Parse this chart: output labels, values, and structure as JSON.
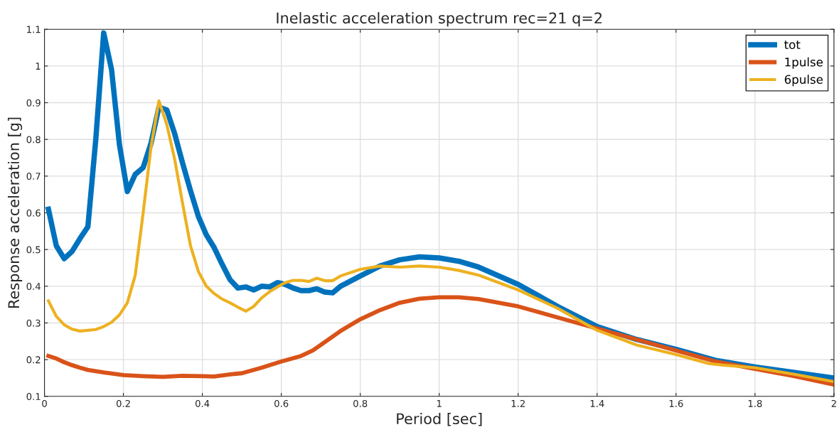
{
  "chart_data": {
    "type": "line",
    "title": "Inelastic acceleration spectrum rec=21 q=2",
    "xlabel": "Period [sec]",
    "ylabel": "Response acceleration [g]",
    "xlim": [
      0,
      2
    ],
    "ylim": [
      0.1,
      1.1
    ],
    "xticks": [
      0,
      0.2,
      0.4,
      0.6,
      0.8,
      1,
      1.2,
      1.4,
      1.6,
      1.8,
      2
    ],
    "yticks": [
      0.1,
      0.2,
      0.3,
      0.4,
      0.5,
      0.6,
      0.7,
      0.8,
      0.9,
      1,
      1.1
    ],
    "grid": true,
    "legend": "top right",
    "line_style": "solid",
    "marker": "none",
    "series": [
      {
        "name": "tot",
        "color": "#0072bd",
        "x": [
          0.01,
          0.03,
          0.05,
          0.07,
          0.09,
          0.11,
          0.13,
          0.15,
          0.17,
          0.19,
          0.21,
          0.23,
          0.25,
          0.27,
          0.29,
          0.31,
          0.33,
          0.35,
          0.37,
          0.39,
          0.41,
          0.43,
          0.45,
          0.47,
          0.49,
          0.51,
          0.53,
          0.55,
          0.57,
          0.59,
          0.61,
          0.63,
          0.65,
          0.67,
          0.69,
          0.71,
          0.73,
          0.75,
          0.8,
          0.85,
          0.9,
          0.95,
          1.0,
          1.05,
          1.1,
          1.2,
          1.3,
          1.4,
          1.5,
          1.6,
          1.7,
          1.8,
          1.9,
          2.0
        ],
        "values": [
          0.61,
          0.51,
          0.475,
          0.495,
          0.53,
          0.562,
          0.8,
          1.09,
          0.99,
          0.785,
          0.658,
          0.705,
          0.723,
          0.79,
          0.888,
          0.88,
          0.815,
          0.735,
          0.66,
          0.59,
          0.54,
          0.505,
          0.46,
          0.418,
          0.395,
          0.398,
          0.39,
          0.4,
          0.398,
          0.41,
          0.405,
          0.395,
          0.388,
          0.388,
          0.393,
          0.384,
          0.382,
          0.4,
          0.428,
          0.455,
          0.472,
          0.48,
          0.477,
          0.468,
          0.452,
          0.405,
          0.345,
          0.29,
          0.255,
          0.228,
          0.198,
          0.18,
          0.165,
          0.15
        ]
      },
      {
        "name": "1pulse",
        "color": "#d95319",
        "x": [
          0.01,
          0.03,
          0.05,
          0.07,
          0.09,
          0.11,
          0.15,
          0.2,
          0.25,
          0.3,
          0.35,
          0.4,
          0.43,
          0.47,
          0.5,
          0.55,
          0.6,
          0.65,
          0.68,
          0.7,
          0.75,
          0.8,
          0.85,
          0.9,
          0.95,
          1.0,
          1.05,
          1.1,
          1.2,
          1.3,
          1.4,
          1.5,
          1.6,
          1.7,
          1.8,
          1.9,
          2.0
        ],
        "values": [
          0.21,
          0.203,
          0.193,
          0.185,
          0.178,
          0.172,
          0.165,
          0.158,
          0.155,
          0.153,
          0.156,
          0.155,
          0.154,
          0.16,
          0.163,
          0.178,
          0.195,
          0.21,
          0.225,
          0.24,
          0.278,
          0.31,
          0.335,
          0.355,
          0.366,
          0.37,
          0.37,
          0.365,
          0.345,
          0.315,
          0.285,
          0.255,
          0.225,
          0.195,
          0.175,
          0.155,
          0.132
        ]
      },
      {
        "name": "6pulse",
        "color": "#edb120",
        "x": [
          0.01,
          0.03,
          0.05,
          0.07,
          0.09,
          0.11,
          0.13,
          0.15,
          0.17,
          0.19,
          0.21,
          0.23,
          0.25,
          0.27,
          0.29,
          0.31,
          0.33,
          0.35,
          0.37,
          0.39,
          0.41,
          0.43,
          0.45,
          0.47,
          0.49,
          0.51,
          0.53,
          0.55,
          0.57,
          0.59,
          0.61,
          0.63,
          0.65,
          0.67,
          0.69,
          0.71,
          0.73,
          0.75,
          0.8,
          0.85,
          0.9,
          0.95,
          1.0,
          1.05,
          1.1,
          1.2,
          1.3,
          1.4,
          1.5,
          1.6,
          1.68,
          1.72,
          1.8,
          1.9,
          2.0
        ],
        "values": [
          0.36,
          0.318,
          0.295,
          0.283,
          0.278,
          0.28,
          0.282,
          0.29,
          0.302,
          0.322,
          0.355,
          0.43,
          0.6,
          0.78,
          0.905,
          0.84,
          0.745,
          0.625,
          0.51,
          0.44,
          0.4,
          0.38,
          0.365,
          0.355,
          0.343,
          0.332,
          0.345,
          0.368,
          0.385,
          0.398,
          0.41,
          0.416,
          0.416,
          0.413,
          0.422,
          0.415,
          0.415,
          0.428,
          0.446,
          0.455,
          0.452,
          0.455,
          0.452,
          0.443,
          0.43,
          0.39,
          0.34,
          0.28,
          0.24,
          0.214,
          0.19,
          0.185,
          0.178,
          0.16,
          0.14
        ]
      }
    ]
  }
}
